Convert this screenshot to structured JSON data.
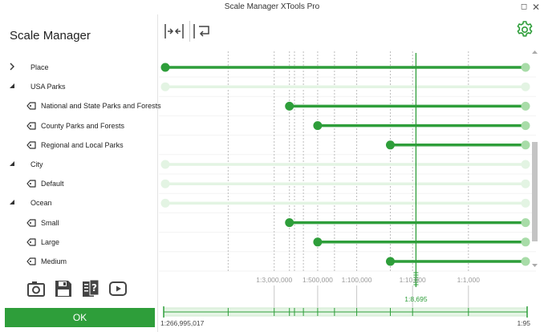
{
  "window": {
    "title": "Scale Manager   XTools Pro",
    "maximize_glyph": "◻",
    "close_glyph": "✕"
  },
  "app_title": "Scale Manager",
  "tree": [
    {
      "label": "Place",
      "type": "group",
      "expanded": false,
      "level": 0
    },
    {
      "label": "USA Parks",
      "type": "group",
      "expanded": true,
      "level": 0
    },
    {
      "label": "National and State Parks and Forests",
      "type": "item",
      "level": 1
    },
    {
      "label": "County Parks and Forests",
      "type": "item",
      "level": 1
    },
    {
      "label": "Regional and Local Parks",
      "type": "item",
      "level": 1
    },
    {
      "label": "City",
      "type": "group",
      "expanded": true,
      "level": 0
    },
    {
      "label": "Default",
      "type": "item",
      "level": 1
    },
    {
      "label": "Ocean",
      "type": "group",
      "expanded": true,
      "level": 0
    },
    {
      "label": "Small",
      "type": "item",
      "level": 1
    },
    {
      "label": "Large",
      "type": "item",
      "level": 1
    },
    {
      "label": "Medium",
      "type": "item",
      "level": 1
    }
  ],
  "tools": [
    {
      "name": "camera-icon"
    },
    {
      "name": "save-icon"
    },
    {
      "name": "help-icon"
    },
    {
      "name": "play-icon"
    }
  ],
  "ok_label": "OK",
  "colors": {
    "accent": "#2e9e3a",
    "active_line": "#2e9e3a",
    "inactive_line": "#e3f4e3",
    "end_dot": "#a8dca8",
    "guide": "#bdbdbd"
  },
  "scale": {
    "min_denominator": 95,
    "max_denominator": 266995017,
    "min_label": "1:95",
    "max_label": "1:266,995,017",
    "current_denominator": 8695,
    "current_label": "1:8,695",
    "ticks": [
      {
        "label": "1:3,000,000",
        "denominator": 3000000
      },
      {
        "label": "1:500,000",
        "denominator": 500000
      },
      {
        "label": "1:100,000",
        "denominator": 100000
      },
      {
        "label": "1:10,000",
        "denominator": 10000
      },
      {
        "label": "1:1,000",
        "denominator": 1000
      }
    ],
    "guides": [
      20000000,
      3000000,
      1600000,
      1300000,
      900000,
      500000,
      250000,
      100000,
      25000,
      10000,
      1000
    ]
  },
  "rows": [
    {
      "active": true,
      "start_denominator": 266995017
    },
    {
      "active": false
    },
    {
      "active": true,
      "start_denominator": 1600000
    },
    {
      "active": true,
      "start_denominator": 500000
    },
    {
      "active": true,
      "start_denominator": 25000
    },
    {
      "active": false
    },
    {
      "active": false
    },
    {
      "active": false
    },
    {
      "active": true,
      "start_denominator": 1600000
    },
    {
      "active": true,
      "start_denominator": 500000
    },
    {
      "active": true,
      "start_denominator": 25000
    }
  ]
}
